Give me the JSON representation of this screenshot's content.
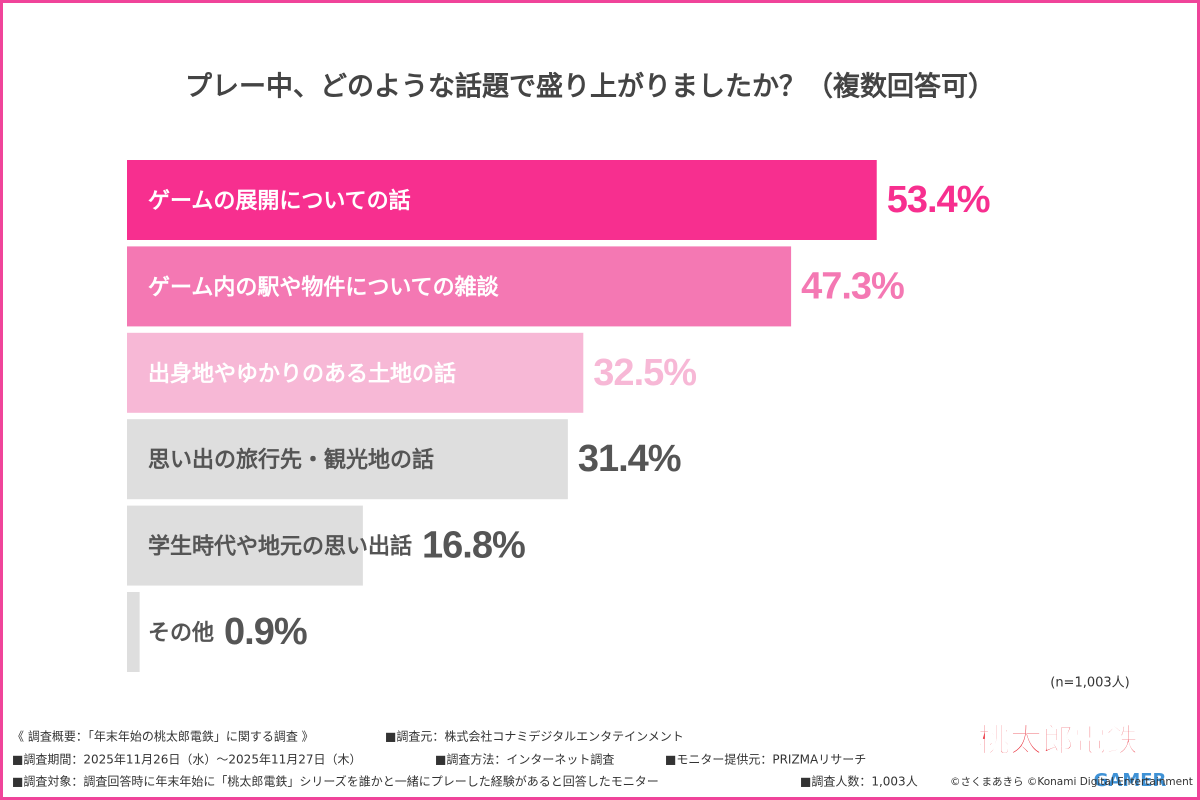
{
  "chart_data": {
    "type": "hbar",
    "title": "プレー中、どのような話題で盛り上がりましたか？（複数回答可）",
    "categories": [
      "ゲームの展開についての話",
      "ゲーム内の駅や物件についての雑談",
      "出身地やゆかりのある土地の話",
      "思い出の旅行先・観光地の話",
      "学生時代や地元の思い出話",
      "その他"
    ],
    "values": [
      53.4,
      47.3,
      32.5,
      31.4,
      16.8,
      0.9
    ],
    "value_labels": [
      "53.4%",
      "47.3%",
      "32.5%",
      "31.4%",
      "16.8%",
      "0.9%"
    ],
    "colors": [
      "#f72f8f",
      "#f478b3",
      "#f7b8d6",
      "#dedede",
      "#dedede",
      "#dedede"
    ],
    "label_colors": [
      "#f72f8f",
      "#f478b3",
      "#f7b8d6",
      "#555555",
      "#555555",
      "#555555"
    ],
    "category_colors": [
      "#ffffff",
      "#ffffff",
      "#ffffff",
      "#555555",
      "#555555",
      "#555555"
    ],
    "sample_note": "(n=1,003人)",
    "footnotes": [
      [
        "《 調査概要：「年末年始の桃太郎電鉄」に関する調査 》",
        "■調査元：株式会社コナミデジタルエンタテインメント"
      ],
      [
        "■調査期間：2025年11月26日（水）〜2025年11月27日（木）",
        "■調査方法：インターネット調査",
        "■モニター提供元：PRIZMAリサーチ"
      ],
      [
        "■調査対象：調査回答時に年末年始に「桃太郎電鉄」シリーズを誰かと一緒にプレーした経験があると回答したモニター",
        "■調査人数：1,003人",
        "©さくまあきら ©Konami Digital Entertainment"
      ]
    ],
    "logo": "桃太郎電鉄",
    "watermark": "GAMER"
  }
}
